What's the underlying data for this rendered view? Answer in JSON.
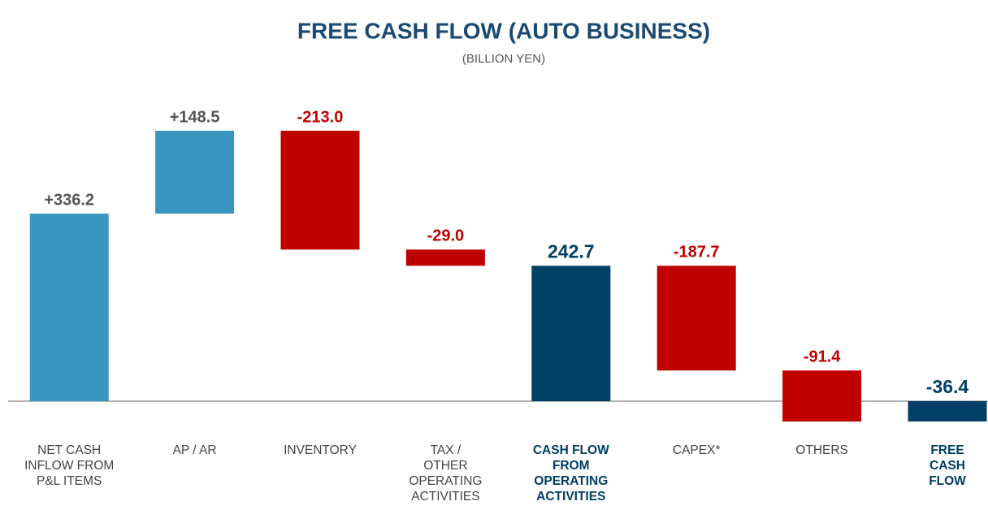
{
  "chart_data": {
    "type": "waterfall",
    "title": "FREE CASH FLOW (AUTO BUSINESS)",
    "subtitle": "(BILLION YEN)",
    "categories": [
      "NET CASH\nINFLOW FROM\nP&L ITEMS",
      "AP / AR",
      "INVENTORY",
      "TAX /\nOTHER\nOPERATING\nACTIVITIES",
      "CASH FLOW\nFROM\nOPERATING\nACTIVITIES",
      "CAPEX*",
      "OTHERS",
      "FREE\nCASH\nFLOW"
    ],
    "values": [
      336.2,
      148.5,
      -213.0,
      -29.0,
      242.7,
      -187.7,
      -91.4,
      -36.4
    ],
    "value_labels": [
      "+336.2",
      "+148.5",
      "-213.0",
      "-29.0",
      "242.7",
      "-187.7",
      "-91.4",
      "-36.4"
    ],
    "measure": [
      "relative",
      "relative",
      "relative",
      "relative",
      "total",
      "relative",
      "relative",
      "total"
    ],
    "colors": {
      "increase": "#3a95c0",
      "decrease": "#c00000",
      "total": "#003f66"
    }
  }
}
